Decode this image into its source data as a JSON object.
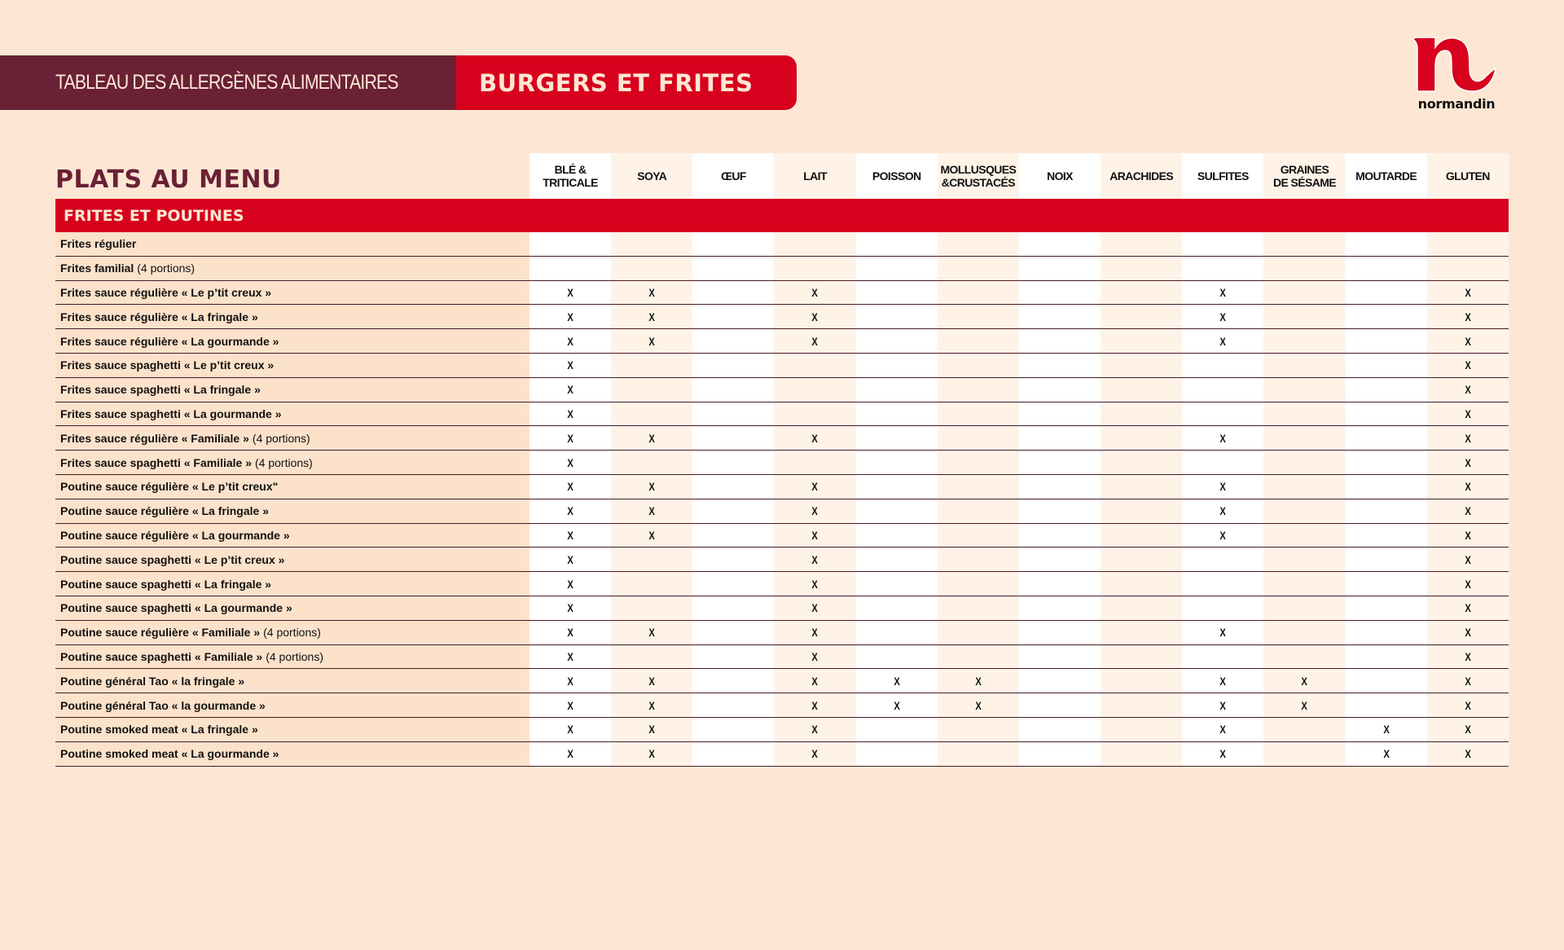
{
  "header": {
    "subtitle": "TABLEAU DES ALLERGÈNES ALIMENTAIRES",
    "title": "BURGERS ET FRITES"
  },
  "logo": {
    "text": "normandin",
    "color": "#d7001d"
  },
  "colors": {
    "maroon": "#6a2035",
    "red": "#d7001d",
    "background": "#fde7d4"
  },
  "table": {
    "title": "PLATS AU MENU",
    "columns": [
      "BLÉ &\nTRITICALE",
      "SOYA",
      "ŒUF",
      "LAIT",
      "POISSON",
      "MOLLUSQUES\n&CRUSTACÉS",
      "NOIX",
      "ARACHIDES",
      "SULFITES",
      "GRAINES\nDE SÉSAME",
      "MOUTARDE",
      "GLUTEN"
    ],
    "section": "FRITES ET POUTINES",
    "rows": [
      {
        "name": "Frites régulier",
        "suffix": "",
        "cells": [
          "",
          "",
          "",
          "",
          "",
          "",
          "",
          "",
          "",
          "",
          "",
          ""
        ]
      },
      {
        "name": "Frites familial",
        "suffix": "(4 portions)",
        "cells": [
          "",
          "",
          "",
          "",
          "",
          "",
          "",
          "",
          "",
          "",
          "",
          ""
        ]
      },
      {
        "name": "Frites sauce régulière « Le p’tit creux »",
        "suffix": "",
        "cells": [
          "X",
          "X",
          "",
          "X",
          "",
          "",
          "",
          "",
          "X",
          "",
          "",
          "X"
        ]
      },
      {
        "name": "Frites sauce régulière « La fringale »",
        "suffix": "",
        "cells": [
          "X",
          "X",
          "",
          "X",
          "",
          "",
          "",
          "",
          "X",
          "",
          "",
          "X"
        ]
      },
      {
        "name": "Frites sauce régulière « La gourmande »",
        "suffix": "",
        "cells": [
          "X",
          "X",
          "",
          "X",
          "",
          "",
          "",
          "",
          "X",
          "",
          "",
          "X"
        ]
      },
      {
        "name": "Frites sauce spaghetti « Le p’tit creux »",
        "suffix": "",
        "cells": [
          "X",
          "",
          "",
          "",
          "",
          "",
          "",
          "",
          "",
          "",
          "",
          "X"
        ]
      },
      {
        "name": "Frites sauce spaghetti « La fringale »",
        "suffix": "",
        "cells": [
          "X",
          "",
          "",
          "",
          "",
          "",
          "",
          "",
          "",
          "",
          "",
          "X"
        ]
      },
      {
        "name": "Frites sauce spaghetti « La gourmande »",
        "suffix": "",
        "cells": [
          "X",
          "",
          "",
          "",
          "",
          "",
          "",
          "",
          "",
          "",
          "",
          "X"
        ]
      },
      {
        "name": "Frites sauce régulière « Familiale »",
        "suffix": "(4 portions)",
        "cells": [
          "X",
          "X",
          "",
          "X",
          "",
          "",
          "",
          "",
          "X",
          "",
          "",
          "X"
        ]
      },
      {
        "name": "Frites sauce spaghetti « Familiale »",
        "suffix": "(4 portions)",
        "cells": [
          "X",
          "",
          "",
          "",
          "",
          "",
          "",
          "",
          "",
          "",
          "",
          "X"
        ]
      },
      {
        "name": "Poutine sauce régulière « Le p’tit creux\"",
        "suffix": "",
        "cells": [
          "X",
          "X",
          "",
          "X",
          "",
          "",
          "",
          "",
          "X",
          "",
          "",
          "X"
        ]
      },
      {
        "name": "Poutine sauce régulière « La fringale »",
        "suffix": "",
        "cells": [
          "X",
          "X",
          "",
          "X",
          "",
          "",
          "",
          "",
          "X",
          "",
          "",
          "X"
        ]
      },
      {
        "name": "Poutine sauce régulière « La gourmande »",
        "suffix": "",
        "cells": [
          "X",
          "X",
          "",
          "X",
          "",
          "",
          "",
          "",
          "X",
          "",
          "",
          "X"
        ]
      },
      {
        "name": "Poutine sauce spaghetti « Le p’tit creux »",
        "suffix": "",
        "cells": [
          "X",
          "",
          "",
          "X",
          "",
          "",
          "",
          "",
          "",
          "",
          "",
          "X"
        ]
      },
      {
        "name": "Poutine sauce spaghetti « La fringale »",
        "suffix": "",
        "cells": [
          "X",
          "",
          "",
          "X",
          "",
          "",
          "",
          "",
          "",
          "",
          "",
          "X"
        ]
      },
      {
        "name": "Poutine sauce spaghetti « La gourmande »",
        "suffix": "",
        "cells": [
          "X",
          "",
          "",
          "X",
          "",
          "",
          "",
          "",
          "",
          "",
          "",
          "X"
        ]
      },
      {
        "name": "Poutine sauce régulière « Familiale »",
        "suffix": "(4 portions)",
        "cells": [
          "X",
          "X",
          "",
          "X",
          "",
          "",
          "",
          "",
          "X",
          "",
          "",
          "X"
        ]
      },
      {
        "name": "Poutine sauce spaghetti « Familiale »",
        "suffix": "(4 portions)",
        "cells": [
          "X",
          "",
          "",
          "X",
          "",
          "",
          "",
          "",
          "",
          "",
          "",
          "X"
        ]
      },
      {
        "name": "Poutine général Tao « la fringale »",
        "suffix": "",
        "cells": [
          "X",
          "X",
          "",
          "X",
          "X",
          "X",
          "",
          "",
          "X",
          "X",
          "",
          "X"
        ]
      },
      {
        "name": "Poutine général Tao « la gourmande »",
        "suffix": "",
        "cells": [
          "X",
          "X",
          "",
          "X",
          "X",
          "X",
          "",
          "",
          "X",
          "X",
          "",
          "X"
        ]
      },
      {
        "name": "Poutine smoked meat « La fringale »",
        "suffix": "",
        "cells": [
          "X",
          "X",
          "",
          "X",
          "",
          "",
          "",
          "",
          "X",
          "",
          "X",
          "X"
        ]
      },
      {
        "name": "Poutine smoked meat « La gourmande »",
        "suffix": "",
        "cells": [
          "X",
          "X",
          "",
          "X",
          "",
          "",
          "",
          "",
          "X",
          "",
          "X",
          "X"
        ]
      }
    ]
  }
}
